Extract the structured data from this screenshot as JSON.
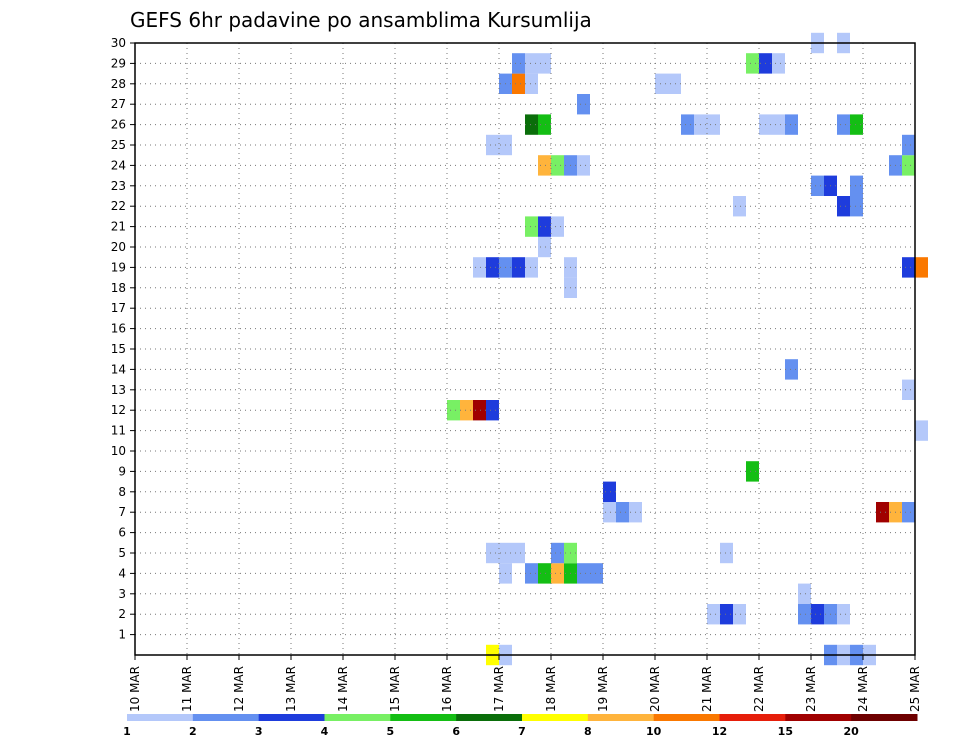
{
  "chart_data": {
    "type": "heatmap",
    "title": "GEFS 6hr padavine po ansamblima Kursumlija",
    "y_ticks": [
      "1",
      "2",
      "3",
      "4",
      "5",
      "6",
      "7",
      "8",
      "9",
      "10",
      "11",
      "12",
      "13",
      "14",
      "15",
      "16",
      "17",
      "18",
      "19",
      "20",
      "21",
      "22",
      "23",
      "24",
      "25",
      "26",
      "27",
      "28",
      "29",
      "30"
    ],
    "x_ticks": [
      "10 MAR",
      "11 MAR",
      "12 MAR",
      "13 MAR",
      "14 MAR",
      "15 MAR",
      "16 MAR",
      "17 MAR",
      "18 MAR",
      "19 MAR",
      "20 MAR",
      "21 MAR",
      "22 MAR",
      "23 MAR",
      "24 MAR",
      "25 MAR"
    ],
    "x_range": [
      "10 MAR",
      "25 MAR"
    ],
    "y_range": [
      0,
      30
    ],
    "time_step": "6hr",
    "grid": true,
    "legend": {
      "placement": "bottom",
      "colors": [
        "#b4c8fa",
        "#6490f0",
        "#1e3cdc",
        "#78f064",
        "#14be14",
        "#0a6e0a",
        "#ffff00",
        "#ffb43c",
        "#fa7800",
        "#e61e0a",
        "#a00000",
        "#6e0000"
      ],
      "tick_labels": [
        "1",
        "2",
        "3",
        "4",
        "5",
        "6",
        "7",
        "8",
        "10",
        "12",
        "15",
        "20"
      ]
    },
    "cells": [
      {
        "member": 0,
        "time": "16 MAR 18",
        "level": 7
      },
      {
        "member": 0,
        "time": "17 MAR 00",
        "level": 1
      },
      {
        "member": 0,
        "time": "23 MAR 06",
        "level": 2
      },
      {
        "member": 0,
        "time": "23 MAR 12",
        "level": 1
      },
      {
        "member": 0,
        "time": "23 MAR 18",
        "level": 2
      },
      {
        "member": 0,
        "time": "24 MAR 00",
        "level": 1
      },
      {
        "member": 2,
        "time": "21 MAR 00",
        "level": 1
      },
      {
        "member": 2,
        "time": "21 MAR 06",
        "level": 3
      },
      {
        "member": 2,
        "time": "21 MAR 12",
        "level": 1
      },
      {
        "member": 2,
        "time": "22 MAR 18",
        "level": 2
      },
      {
        "member": 2,
        "time": "23 MAR 00",
        "level": 3
      },
      {
        "member": 2,
        "time": "23 MAR 06",
        "level": 2
      },
      {
        "member": 2,
        "time": "23 MAR 12",
        "level": 1
      },
      {
        "member": 3,
        "time": "22 MAR 18",
        "level": 1
      },
      {
        "member": 4,
        "time": "17 MAR 00",
        "level": 1
      },
      {
        "member": 4,
        "time": "17 MAR 12",
        "level": 2
      },
      {
        "member": 4,
        "time": "17 MAR 18",
        "level": 5
      },
      {
        "member": 4,
        "time": "18 MAR 00",
        "level": 8
      },
      {
        "member": 4,
        "time": "18 MAR 06",
        "level": 5
      },
      {
        "member": 4,
        "time": "18 MAR 12",
        "level": 2
      },
      {
        "member": 4,
        "time": "18 MAR 18",
        "level": 2
      },
      {
        "member": 5,
        "time": "16 MAR 18",
        "level": 1
      },
      {
        "member": 5,
        "time": "17 MAR 00",
        "level": 1
      },
      {
        "member": 5,
        "time": "17 MAR 06",
        "level": 1
      },
      {
        "member": 5,
        "time": "18 MAR 00",
        "level": 2
      },
      {
        "member": 5,
        "time": "18 MAR 06",
        "level": 4
      },
      {
        "member": 5,
        "time": "21 MAR 06",
        "level": 1
      },
      {
        "member": 7,
        "time": "19 MAR 00",
        "level": 1
      },
      {
        "member": 7,
        "time": "19 MAR 06",
        "level": 2
      },
      {
        "member": 7,
        "time": "19 MAR 12",
        "level": 1
      },
      {
        "member": 7,
        "time": "24 MAR 06",
        "level": 15
      },
      {
        "member": 7,
        "time": "24 MAR 12",
        "level": 8
      },
      {
        "member": 7,
        "time": "24 MAR 18",
        "level": 2
      },
      {
        "member": 8,
        "time": "19 MAR 00",
        "level": 3
      },
      {
        "member": 9,
        "time": "21 MAR 18",
        "level": 5
      },
      {
        "member": 11,
        "time": "25 MAR 00",
        "level": 1
      },
      {
        "member": 12,
        "time": "16 MAR 00",
        "level": 4
      },
      {
        "member": 12,
        "time": "16 MAR 06",
        "level": 8
      },
      {
        "member": 12,
        "time": "16 MAR 12",
        "level": 15
      },
      {
        "member": 12,
        "time": "16 MAR 18",
        "level": 3
      },
      {
        "member": 13,
        "time": "24 MAR 18",
        "level": 1
      },
      {
        "member": 14,
        "time": "22 MAR 12",
        "level": 2
      },
      {
        "member": 18,
        "time": "18 MAR 06",
        "level": 1
      },
      {
        "member": 19,
        "time": "16 MAR 12",
        "level": 1
      },
      {
        "member": 19,
        "time": "16 MAR 18",
        "level": 3
      },
      {
        "member": 19,
        "time": "17 MAR 00",
        "level": 2
      },
      {
        "member": 19,
        "time": "17 MAR 06",
        "level": 3
      },
      {
        "member": 19,
        "time": "17 MAR 12",
        "level": 1
      },
      {
        "member": 19,
        "time": "18 MAR 06",
        "level": 1
      },
      {
        "member": 19,
        "time": "24 MAR 18",
        "level": 3
      },
      {
        "member": 19,
        "time": "25 MAR 00",
        "level": 10
      },
      {
        "member": 20,
        "time": "17 MAR 18",
        "level": 1
      },
      {
        "member": 21,
        "time": "17 MAR 12",
        "level": 4
      },
      {
        "member": 21,
        "time": "17 MAR 18",
        "level": 3
      },
      {
        "member": 21,
        "time": "18 MAR 00",
        "level": 1
      },
      {
        "member": 22,
        "time": "21 MAR 12",
        "level": 1
      },
      {
        "member": 22,
        "time": "23 MAR 12",
        "level": 3
      },
      {
        "member": 22,
        "time": "23 MAR 18",
        "level": 2
      },
      {
        "member": 23,
        "time": "23 MAR 00",
        "level": 2
      },
      {
        "member": 23,
        "time": "23 MAR 06",
        "level": 3
      },
      {
        "member": 23,
        "time": "23 MAR 18",
        "level": 2
      },
      {
        "member": 24,
        "time": "17 MAR 18",
        "level": 8
      },
      {
        "member": 24,
        "time": "18 MAR 00",
        "level": 4
      },
      {
        "member": 24,
        "time": "18 MAR 06",
        "level": 2
      },
      {
        "member": 24,
        "time": "18 MAR 12",
        "level": 1
      },
      {
        "member": 24,
        "time": "24 MAR 12",
        "level": 2
      },
      {
        "member": 24,
        "time": "24 MAR 18",
        "level": 4
      },
      {
        "member": 25,
        "time": "16 MAR 18",
        "level": 1
      },
      {
        "member": 25,
        "time": "17 MAR 00",
        "level": 1
      },
      {
        "member": 25,
        "time": "24 MAR 18",
        "level": 2
      },
      {
        "member": 26,
        "time": "17 MAR 12",
        "level": 6
      },
      {
        "member": 26,
        "time": "17 MAR 18",
        "level": 5
      },
      {
        "member": 26,
        "time": "20 MAR 12",
        "level": 2
      },
      {
        "member": 26,
        "time": "20 MAR 18",
        "level": 1
      },
      {
        "member": 26,
        "time": "21 MAR 00",
        "level": 1
      },
      {
        "member": 26,
        "time": "22 MAR 00",
        "level": 1
      },
      {
        "member": 26,
        "time": "22 MAR 06",
        "level": 1
      },
      {
        "member": 26,
        "time": "22 MAR 12",
        "level": 2
      },
      {
        "member": 26,
        "time": "23 MAR 12",
        "level": 2
      },
      {
        "member": 26,
        "time": "23 MAR 18",
        "level": 5
      },
      {
        "member": 27,
        "time": "18 MAR 12",
        "level": 2
      },
      {
        "member": 28,
        "time": "17 MAR 00",
        "level": 2
      },
      {
        "member": 28,
        "time": "17 MAR 06",
        "level": 10
      },
      {
        "member": 28,
        "time": "17 MAR 12",
        "level": 1
      },
      {
        "member": 28,
        "time": "20 MAR 00",
        "level": 1
      },
      {
        "member": 28,
        "time": "20 MAR 06",
        "level": 1
      },
      {
        "member": 29,
        "time": "17 MAR 06",
        "level": 2
      },
      {
        "member": 29,
        "time": "17 MAR 12",
        "level": 1
      },
      {
        "member": 29,
        "time": "17 MAR 18",
        "level": 1
      },
      {
        "member": 29,
        "time": "21 MAR 18",
        "level": 4
      },
      {
        "member": 29,
        "time": "22 MAR 00",
        "level": 3
      },
      {
        "member": 29,
        "time": "22 MAR 06",
        "level": 1
      },
      {
        "member": 30,
        "time": "23 MAR 00",
        "level": 1
      },
      {
        "member": 30,
        "time": "23 MAR 12",
        "level": 1
      }
    ]
  }
}
